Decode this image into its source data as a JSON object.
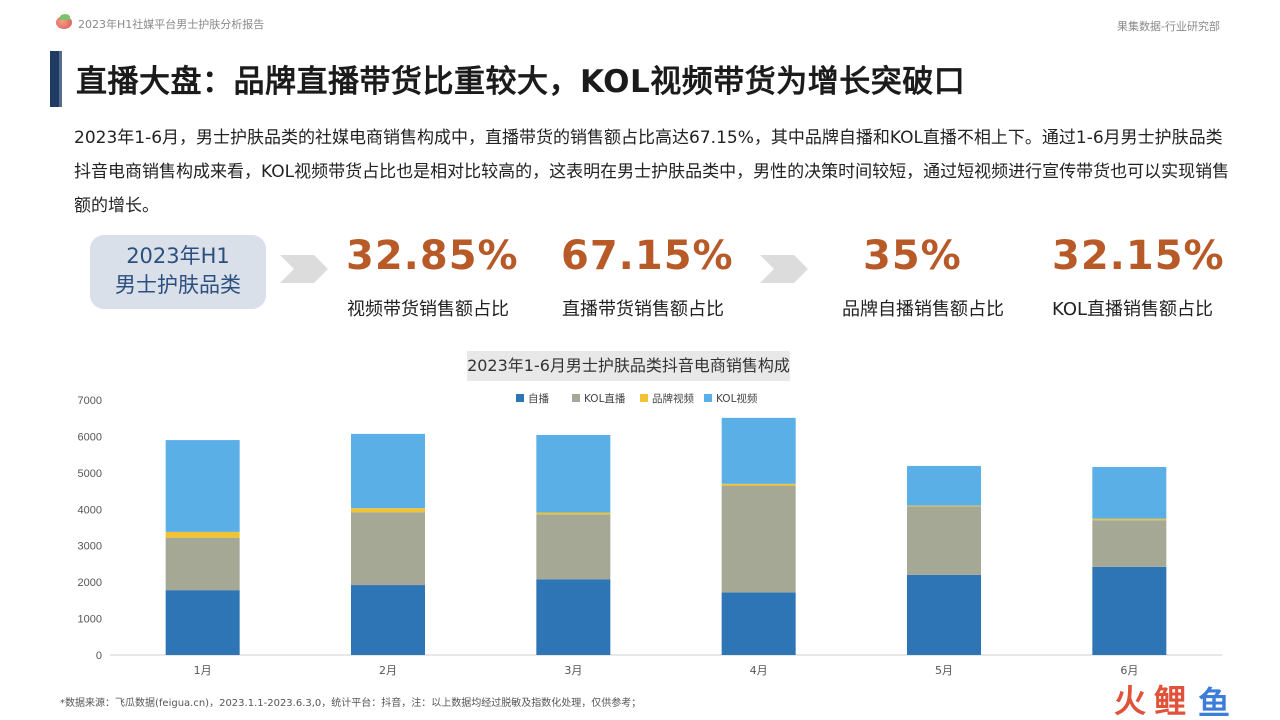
{
  "header": {
    "report_title": "2023年H1社媒平台男士护肤分析报告",
    "department": "果集数据-行业研究部"
  },
  "title": "直播大盘：品牌直播带货比重较大，KOL视频带货为增长突破口",
  "description": "2023年1-6月，男士护肤品类的社媒电商销售构成中，直播带货的销售额占比高达67.15%，其中品牌自播和KOL直播不相上下。通过1-6月男士护肤品类抖音电商销售构成来看，KOL视频带货占比也是相对比较高的，这表明在男士护肤品类中，男性的决策时间较短，通过短视频进行宣传带货也可以实现销售额的增长。",
  "badge": {
    "line1": "2023年H1",
    "line2": "男士护肤品类"
  },
  "stats": [
    {
      "value": "32.85%",
      "label": "视频带货销售额占比"
    },
    {
      "value": "67.15%",
      "label": "直播带货销售额占比"
    },
    {
      "value": "35%",
      "label": "品牌自播销售额占比"
    },
    {
      "value": "32.15%",
      "label": "KOL直播销售额占比"
    }
  ],
  "colors": {
    "accent": "#b85a28",
    "title_bar": "#1f3b64",
    "badge_bg": "#d9e0ea",
    "badge_text": "#2b4f7e"
  },
  "chart_data": {
    "type": "bar",
    "stacked": true,
    "title": "2023年1-6月男士护肤品类抖音电商销售构成",
    "categories": [
      "1月",
      "2月",
      "3月",
      "4月",
      "5月",
      "6月"
    ],
    "series": [
      {
        "name": "自播",
        "color": "#2e75b6",
        "values": [
          1780,
          1920,
          2080,
          1720,
          2200,
          2420
        ]
      },
      {
        "name": "KOL直播",
        "color": "#a5a894",
        "values": [
          1440,
          2000,
          1780,
          2930,
          1880,
          1280
        ]
      },
      {
        "name": "品牌视频",
        "color": "#f1c232",
        "values": [
          160,
          110,
          50,
          50,
          20,
          40
        ]
      },
      {
        "name": "KOL视频",
        "color": "#5aafe6",
        "values": [
          2520,
          2040,
          2130,
          1810,
          1090,
          1420
        ]
      }
    ],
    "ylim": [
      0,
      7000
    ],
    "yticks": [
      0,
      1000,
      2000,
      3000,
      4000,
      5000,
      6000,
      7000
    ],
    "legend_position": "top-center",
    "grid": false
  },
  "source_note": "*数据来源：飞瓜数据(feigua.cn)，2023.1.1-2023.6.3,0，统计平台：抖音，注：以上数据均经过脱敏及指数化处理，仅供参考；",
  "watermark": {
    "text_1": "火",
    "text_2": "鲤",
    "text_3": "鱼"
  }
}
